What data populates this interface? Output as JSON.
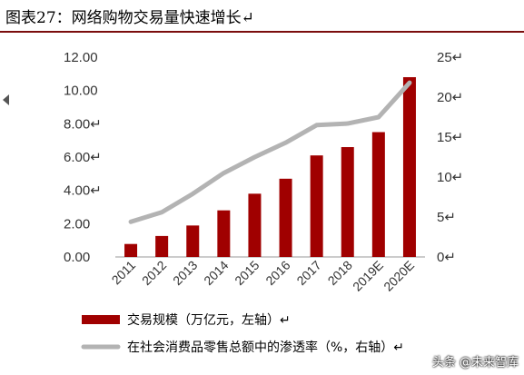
{
  "title": "图表27：网络购物交易量快速增长↵",
  "watermark": "头条 @未来智库",
  "chart_data": {
    "type": "bar",
    "categories": [
      "2011",
      "2012",
      "2013",
      "2014",
      "2015",
      "2016",
      "2017",
      "2018",
      "2019E",
      "2020E"
    ],
    "series": [
      {
        "name": "交易规模（万亿元，左轴）↵",
        "type": "bar",
        "axis": "left",
        "color": "#a00000",
        "values": [
          0.78,
          1.26,
          1.89,
          2.8,
          3.8,
          4.7,
          6.1,
          6.6,
          7.5,
          10.8
        ]
      },
      {
        "name": "在社会消费品零售总额中的渗透率（%，右轴）↵",
        "type": "line",
        "axis": "right",
        "color": "#b3b3b3",
        "values": [
          4.4,
          5.6,
          7.9,
          10.5,
          12.5,
          14.3,
          16.5,
          16.7,
          17.5,
          21.8
        ]
      }
    ],
    "left_ticks": [
      "0.00",
      "2.00",
      "4.00↵",
      "6.00↵",
      "8.00↵",
      "10.00",
      "12.00"
    ],
    "right_ticks": [
      "0↵",
      "5↵",
      "10↵",
      "15↵",
      "20↵",
      "25↵"
    ],
    "ylim_left": [
      0,
      12
    ],
    "ylim_right": [
      0,
      25
    ],
    "grid": false,
    "legend_position": "bottom"
  }
}
